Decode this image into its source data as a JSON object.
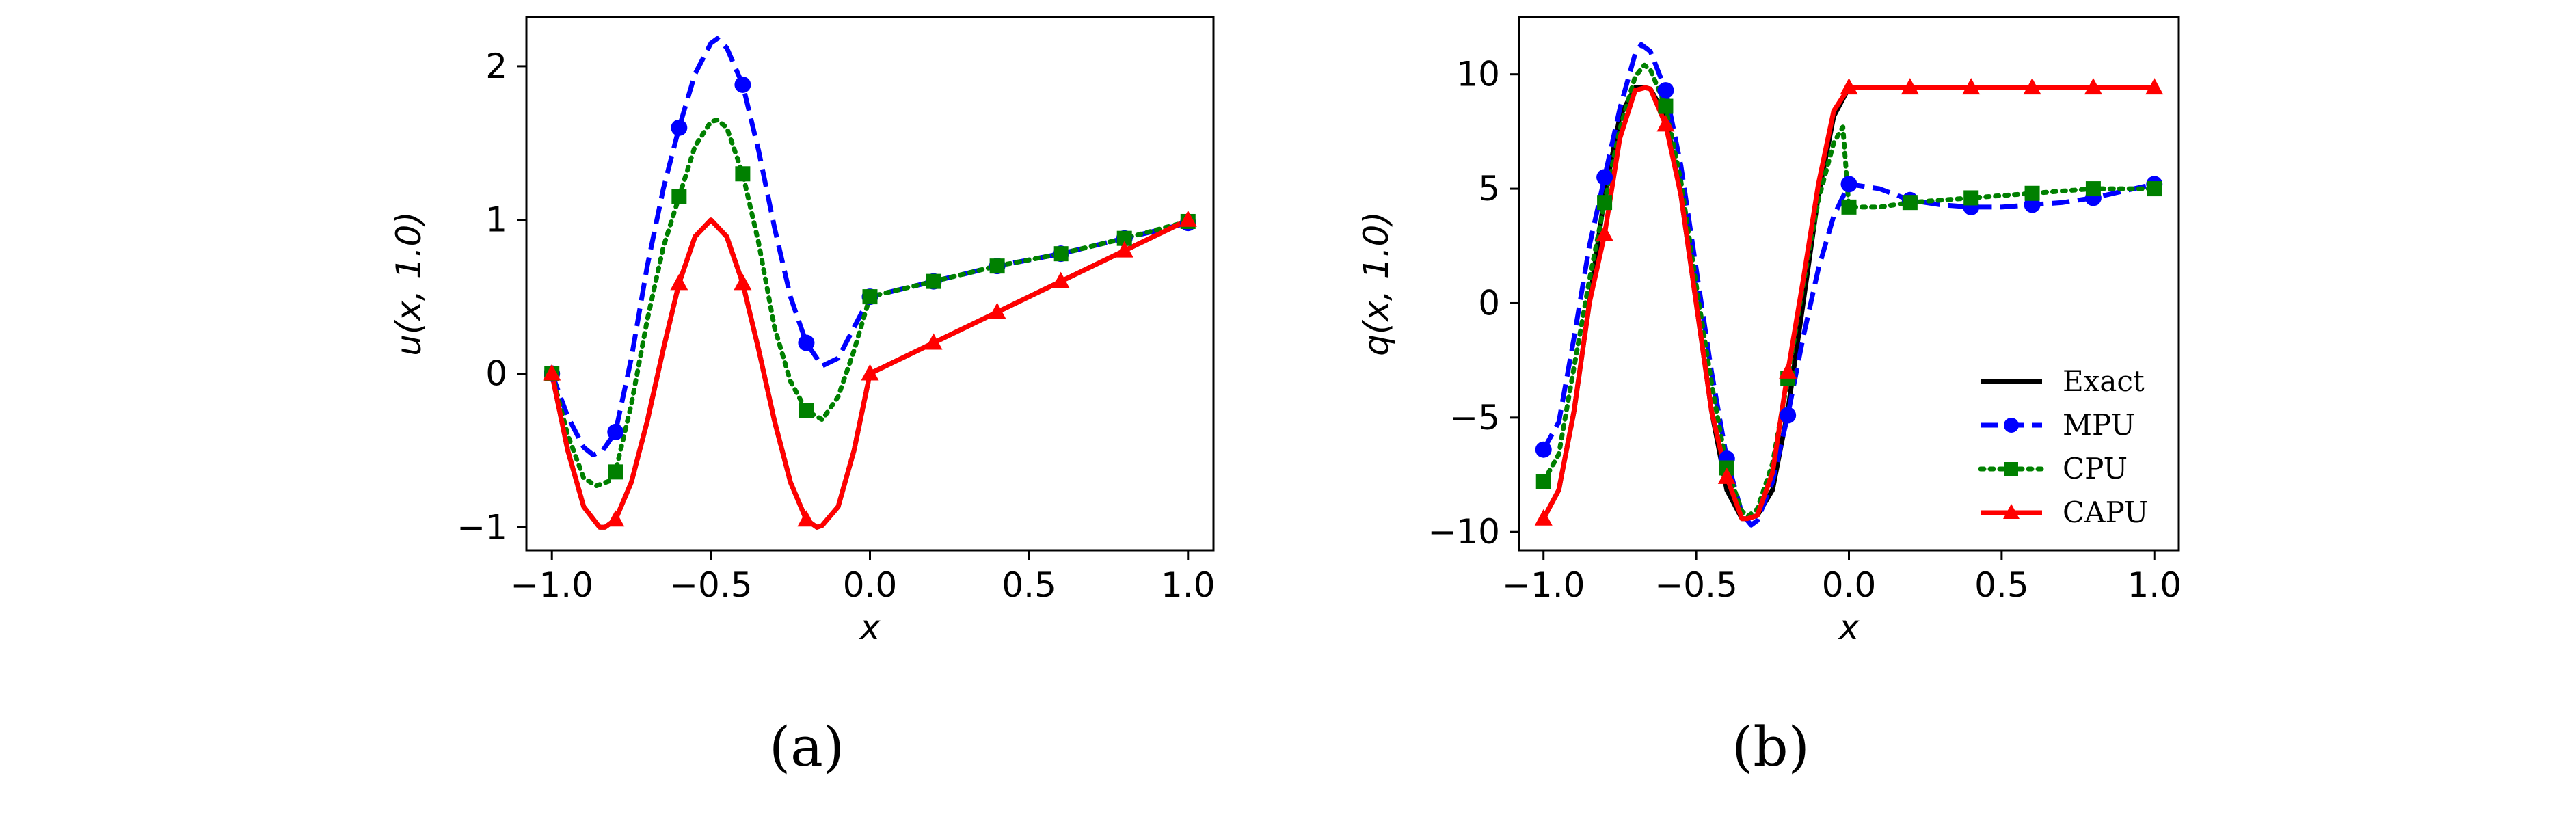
{
  "chart_data": [
    {
      "type": "line",
      "panel_label": "(a)",
      "xlabel": "x",
      "ylabel": "u(x, 1.0)",
      "xlim": [
        -1.08,
        1.08
      ],
      "ylim": [
        -1.15,
        2.32
      ],
      "xticks": [
        -1.0,
        -0.5,
        0.0,
        0.5,
        1.0
      ],
      "xtick_labels": [
        "−1.0",
        "−0.5",
        "0.0",
        "0.5",
        "1.0"
      ],
      "yticks": [
        -1,
        0,
        1,
        2
      ],
      "ytick_labels": [
        "−1",
        "0",
        "1",
        "2"
      ],
      "legend": null,
      "series": [
        {
          "name": "Exact",
          "style": "solid",
          "color": "#000000",
          "marker": "none",
          "x": [
            -1.0,
            -0.95,
            -0.9,
            -0.85,
            -0.8333,
            -0.8,
            -0.75,
            -0.7,
            -0.65,
            -0.6,
            -0.55,
            -0.5,
            -0.45,
            -0.4,
            -0.35,
            -0.3,
            -0.25,
            -0.2,
            -0.1667,
            -0.15,
            -0.1,
            -0.05,
            0.0,
            0.2,
            0.4,
            0.6,
            0.8,
            1.0
          ],
          "y": [
            0.0,
            -0.5,
            -0.866,
            -1.0,
            -1.0,
            -0.951,
            -0.707,
            -0.309,
            0.156,
            0.588,
            0.891,
            1.0,
            0.891,
            0.588,
            0.156,
            -0.309,
            -0.707,
            -0.951,
            -1.0,
            -0.988,
            -0.866,
            -0.5,
            0.0,
            0.2,
            0.4,
            0.6,
            0.8,
            1.0
          ]
        },
        {
          "name": "MPU",
          "style": "dashed",
          "color": "#0000ff",
          "marker": "circle",
          "x": [
            -1.0,
            -0.95,
            -0.9,
            -0.87,
            -0.84,
            -0.8,
            -0.75,
            -0.7,
            -0.65,
            -0.6,
            -0.55,
            -0.5,
            -0.48,
            -0.45,
            -0.4,
            -0.35,
            -0.3,
            -0.25,
            -0.2,
            -0.15,
            -0.1,
            -0.05,
            0.0,
            0.2,
            0.4,
            0.6,
            0.8,
            1.0
          ],
          "y": [
            0.0,
            -0.28,
            -0.48,
            -0.53,
            -0.5,
            -0.38,
            0.1,
            0.7,
            1.2,
            1.6,
            1.95,
            2.15,
            2.18,
            2.12,
            1.88,
            1.45,
            0.95,
            0.5,
            0.2,
            0.05,
            0.1,
            0.3,
            0.5,
            0.6,
            0.7,
            0.78,
            0.88,
            0.98
          ],
          "markers_x": [
            -1.0,
            -0.8,
            -0.6,
            -0.4,
            -0.2,
            0.0,
            0.2,
            0.4,
            0.6,
            0.8,
            1.0
          ],
          "markers_y": [
            0.0,
            -0.38,
            1.6,
            1.88,
            0.2,
            0.5,
            0.6,
            0.7,
            0.78,
            0.88,
            0.98
          ]
        },
        {
          "name": "CPU",
          "style": "dotted",
          "color": "#008000",
          "marker": "square",
          "x": [
            -1.0,
            -0.95,
            -0.9,
            -0.86,
            -0.82,
            -0.8,
            -0.75,
            -0.7,
            -0.65,
            -0.6,
            -0.55,
            -0.5,
            -0.48,
            -0.45,
            -0.4,
            -0.35,
            -0.3,
            -0.25,
            -0.2,
            -0.15,
            -0.1,
            -0.05,
            0.0,
            0.2,
            0.4,
            0.6,
            0.8,
            1.0
          ],
          "y": [
            0.0,
            -0.4,
            -0.68,
            -0.73,
            -0.7,
            -0.64,
            -0.2,
            0.35,
            0.82,
            1.15,
            1.48,
            1.64,
            1.65,
            1.6,
            1.3,
            0.85,
            0.3,
            -0.05,
            -0.24,
            -0.3,
            -0.15,
            0.15,
            0.5,
            0.6,
            0.7,
            0.78,
            0.88,
            0.99
          ],
          "markers_x": [
            -1.0,
            -0.8,
            -0.6,
            -0.4,
            -0.2,
            0.0,
            0.2,
            0.4,
            0.6,
            0.8,
            1.0
          ],
          "markers_y": [
            0.0,
            -0.64,
            1.15,
            1.3,
            -0.24,
            0.5,
            0.6,
            0.7,
            0.78,
            0.88,
            0.99
          ]
        },
        {
          "name": "CAPU",
          "style": "solid",
          "color": "#ff0000",
          "marker": "triangle",
          "x": [
            -1.0,
            -0.95,
            -0.9,
            -0.85,
            -0.8333,
            -0.8,
            -0.75,
            -0.7,
            -0.65,
            -0.6,
            -0.55,
            -0.5,
            -0.45,
            -0.4,
            -0.35,
            -0.3,
            -0.25,
            -0.2,
            -0.1667,
            -0.15,
            -0.1,
            -0.05,
            0.0,
            0.2,
            0.4,
            0.6,
            0.8,
            1.0
          ],
          "y": [
            0.0,
            -0.5,
            -0.866,
            -1.0,
            -1.0,
            -0.951,
            -0.707,
            -0.309,
            0.156,
            0.588,
            0.891,
            1.0,
            0.891,
            0.588,
            0.156,
            -0.309,
            -0.707,
            -0.951,
            -1.0,
            -0.988,
            -0.866,
            -0.5,
            0.0,
            0.2,
            0.4,
            0.6,
            0.8,
            1.0
          ],
          "markers_x": [
            -1.0,
            -0.8,
            -0.6,
            -0.4,
            -0.2,
            0.0,
            0.2,
            0.4,
            0.6,
            0.8,
            1.0
          ],
          "markers_y": [
            0.0,
            -0.951,
            0.588,
            0.588,
            -0.951,
            0.0,
            0.2,
            0.4,
            0.6,
            0.8,
            1.0
          ]
        }
      ]
    },
    {
      "type": "line",
      "panel_label": "(b)",
      "xlabel": "x",
      "ylabel": "q(x, 1.0)",
      "xlim": [
        -1.08,
        1.08
      ],
      "ylim": [
        -10.8,
        12.5
      ],
      "xticks": [
        -1.0,
        -0.5,
        0.0,
        0.5,
        1.0
      ],
      "xtick_labels": [
        "−1.0",
        "−0.5",
        "0.0",
        "0.5",
        "1.0"
      ],
      "yticks": [
        -10,
        -5,
        0,
        5,
        10
      ],
      "ytick_labels": [
        "−10",
        "−5",
        "0",
        "5",
        "10"
      ],
      "legend": {
        "placement": "lower-right",
        "entries": [
          "Exact",
          "MPU",
          "CPU",
          "CAPU"
        ]
      },
      "series": [
        {
          "name": "Exact",
          "style": "solid",
          "color": "#000000",
          "marker": "none",
          "x": [
            -1.0,
            -0.95,
            -0.9,
            -0.85,
            -0.8,
            -0.75,
            -0.7,
            -0.6667,
            -0.65,
            -0.6,
            -0.55,
            -0.5,
            -0.45,
            -0.4,
            -0.35,
            -0.3333,
            -0.3,
            -0.25,
            -0.2,
            -0.15,
            -0.1,
            -0.05,
            0.0,
            0.2,
            0.4,
            0.6,
            0.8,
            1.0
          ],
          "y": [
            -9.42,
            -8.16,
            -4.71,
            0.0,
            4.71,
            8.16,
            9.42,
            9.42,
            9.36,
            8.16,
            4.71,
            0.0,
            -4.71,
            -8.16,
            -9.42,
            -9.42,
            -9.28,
            -8.16,
            -4.71,
            0.0,
            4.71,
            8.16,
            9.42,
            9.42,
            9.42,
            9.42,
            9.42,
            9.42
          ]
        },
        {
          "name": "MPU",
          "style": "dashed",
          "color": "#0000ff",
          "marker": "circle",
          "x": [
            -1.0,
            -0.95,
            -0.9,
            -0.85,
            -0.8,
            -0.75,
            -0.7,
            -0.68,
            -0.65,
            -0.6,
            -0.55,
            -0.5,
            -0.45,
            -0.4,
            -0.35,
            -0.32,
            -0.3,
            -0.25,
            -0.2,
            -0.15,
            -0.1,
            -0.05,
            0.0,
            0.1,
            0.2,
            0.3,
            0.4,
            0.5,
            0.6,
            0.7,
            0.8,
            0.9,
            1.0
          ],
          "y": [
            -6.4,
            -5.2,
            -1.5,
            2.5,
            5.5,
            8.5,
            10.9,
            11.3,
            11.0,
            9.3,
            6.0,
            1.5,
            -3.0,
            -6.8,
            -9.2,
            -9.7,
            -9.5,
            -7.8,
            -4.9,
            -1.5,
            1.5,
            3.8,
            5.2,
            5.0,
            4.5,
            4.3,
            4.2,
            4.2,
            4.3,
            4.4,
            4.6,
            4.9,
            5.2
          ],
          "markers_x": [
            -1.0,
            -0.8,
            -0.6,
            -0.4,
            -0.2,
            0.0,
            0.2,
            0.4,
            0.6,
            0.8,
            1.0
          ],
          "markers_y": [
            -6.4,
            5.5,
            9.3,
            -6.8,
            -4.9,
            5.2,
            4.5,
            4.2,
            4.3,
            4.6,
            5.2
          ]
        },
        {
          "name": "CPU",
          "style": "dotted",
          "color": "#008000",
          "marker": "square",
          "x": [
            -1.0,
            -0.95,
            -0.9,
            -0.85,
            -0.8,
            -0.75,
            -0.7,
            -0.67,
            -0.65,
            -0.6,
            -0.55,
            -0.5,
            -0.45,
            -0.4,
            -0.35,
            -0.33,
            -0.3,
            -0.25,
            -0.2,
            -0.15,
            -0.1,
            -0.05,
            -0.02,
            0.0,
            0.1,
            0.2,
            0.3,
            0.4,
            0.5,
            0.6,
            0.7,
            0.8,
            0.9,
            1.0
          ],
          "y": [
            -7.8,
            -6.6,
            -2.8,
            1.0,
            4.4,
            7.6,
            9.9,
            10.4,
            10.2,
            8.6,
            5.3,
            0.8,
            -3.5,
            -7.2,
            -9.1,
            -9.3,
            -9.0,
            -7.0,
            -3.3,
            0.8,
            4.5,
            7.0,
            7.7,
            4.2,
            4.2,
            4.4,
            4.5,
            4.6,
            4.7,
            4.8,
            4.9,
            5.0,
            5.0,
            5.0
          ],
          "markers_x": [
            -1.0,
            -0.8,
            -0.6,
            -0.4,
            -0.2,
            0.0,
            0.2,
            0.4,
            0.6,
            0.8,
            1.0
          ],
          "markers_y": [
            -7.8,
            4.4,
            8.6,
            -7.2,
            -3.3,
            4.2,
            4.4,
            4.6,
            4.8,
            5.0,
            5.0
          ]
        },
        {
          "name": "CAPU",
          "style": "solid",
          "color": "#ff0000",
          "marker": "triangle",
          "x": [
            -1.0,
            -0.95,
            -0.9,
            -0.85,
            -0.8,
            -0.75,
            -0.7,
            -0.6667,
            -0.65,
            -0.6,
            -0.55,
            -0.5,
            -0.45,
            -0.4,
            -0.35,
            -0.3333,
            -0.3,
            -0.25,
            -0.2,
            -0.15,
            -0.1,
            -0.05,
            0.0,
            0.2,
            0.4,
            0.6,
            0.8,
            1.0
          ],
          "y": [
            -9.42,
            -8.16,
            -4.71,
            0.0,
            3.0,
            7.2,
            9.3,
            9.42,
            9.36,
            7.8,
            4.71,
            0.0,
            -4.71,
            -7.6,
            -9.42,
            -9.42,
            -9.28,
            -7.4,
            -3.0,
            1.0,
            5.2,
            8.4,
            9.42,
            9.42,
            9.42,
            9.42,
            9.42,
            9.42
          ],
          "markers_x": [
            -1.0,
            -0.8,
            -0.6,
            -0.4,
            -0.2,
            0.0,
            0.2,
            0.4,
            0.6,
            0.8,
            1.0
          ],
          "markers_y": [
            -9.42,
            3.0,
            7.8,
            -7.6,
            -3.0,
            9.42,
            9.42,
            9.42,
            9.42,
            9.42,
            9.42
          ]
        }
      ]
    }
  ]
}
